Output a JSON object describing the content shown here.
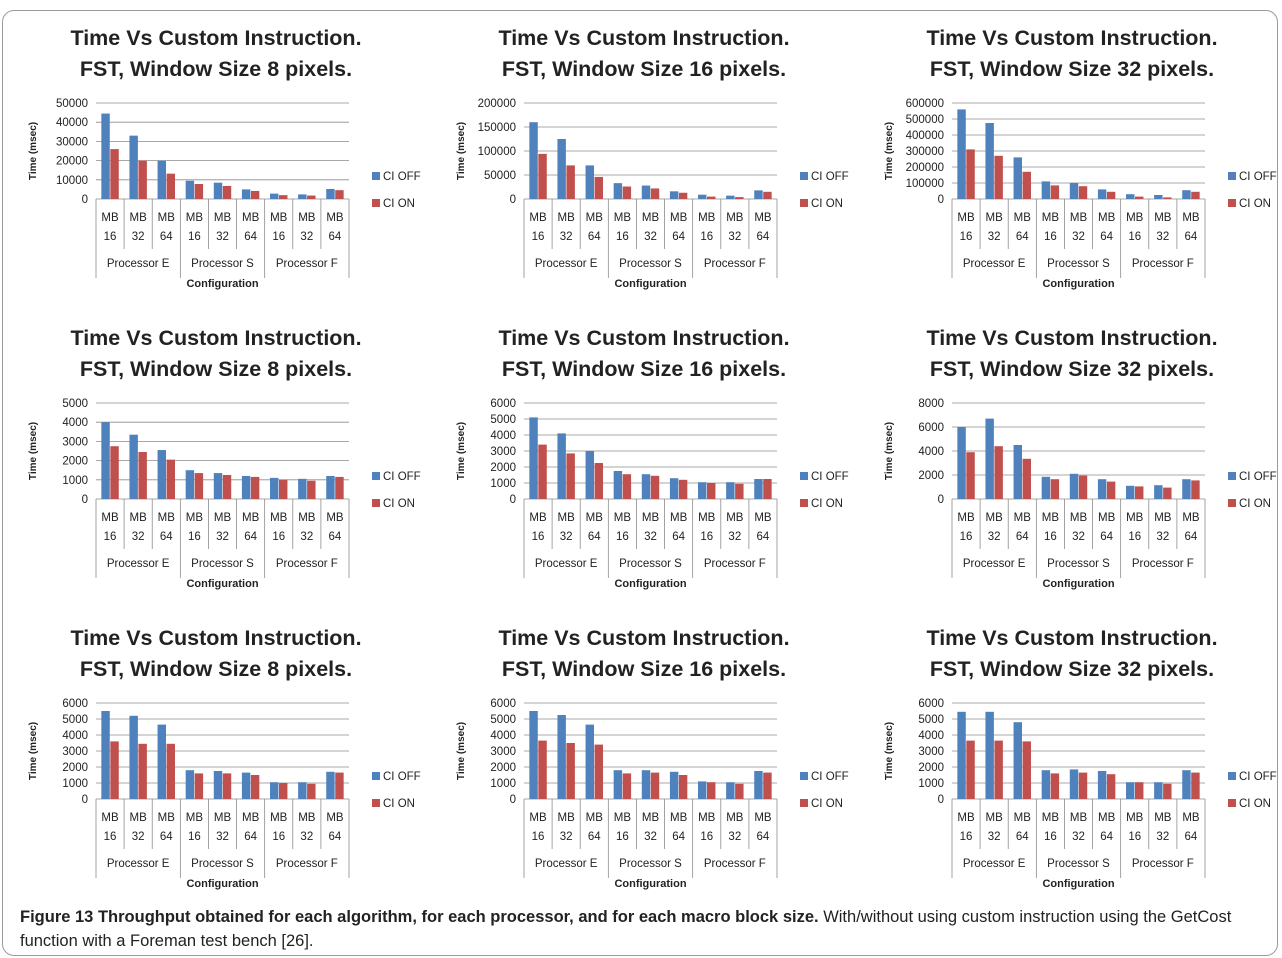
{
  "caption": {
    "label": "Figure 13",
    "title": "Throughput obtained for each algorithm, for each processor, and for each macro block size.",
    "text": "With/without using custom instruction using the GetCost function with a Foreman test bench [26]."
  },
  "colors": {
    "ci_off": "#4f81bd",
    "ci_on": "#c0504d",
    "grid": "#8c8c8c",
    "text": "#222222"
  },
  "chart_data": [
    {
      "type": "bar",
      "title": [
        "Time Vs Custom Instruction.",
        "FST, Window Size 8 pixels."
      ],
      "xlabel": "Configuration",
      "ylabel": "Time (msec)",
      "groups": [
        "Processor E",
        "Processor S",
        "Processor F"
      ],
      "categories": [
        "MB 16",
        "MB 32",
        "MB 64",
        "MB 16",
        "MB 32",
        "MB 64",
        "MB 16",
        "MB 32",
        "MB 64"
      ],
      "yticks": [
        "0",
        "10000",
        "20000",
        "30000",
        "40000",
        "50000"
      ],
      "ylim": [
        0,
        50000
      ],
      "legend_position": "right",
      "series": [
        {
          "name": "CI OFF",
          "values": [
            44500,
            33000,
            20000,
            9500,
            8500,
            5000,
            2800,
            2400,
            5200
          ]
        },
        {
          "name": "CI ON",
          "values": [
            26000,
            20000,
            13200,
            7800,
            6800,
            4200,
            2000,
            1800,
            4600
          ]
        }
      ]
    },
    {
      "type": "bar",
      "title": [
        "Time Vs Custom Instruction.",
        "FST, Window Size 16 pixels."
      ],
      "xlabel": "Configuration",
      "ylabel": "Time (msec)",
      "groups": [
        "Processor E",
        "Processor S",
        "Processor F"
      ],
      "categories": [
        "MB 16",
        "MB 32",
        "MB 64",
        "MB 16",
        "MB 32",
        "MB 64",
        "MB 16",
        "MB 32",
        "MB 64"
      ],
      "yticks": [
        "0",
        "50000",
        "100000",
        "150000",
        "200000"
      ],
      "ylim": [
        0,
        200000
      ],
      "legend_position": "right",
      "series": [
        {
          "name": "CI OFF",
          "values": [
            160000,
            125000,
            70000,
            33000,
            28000,
            16000,
            9000,
            7000,
            18000
          ]
        },
        {
          "name": "CI ON",
          "values": [
            94000,
            70000,
            46000,
            26000,
            22000,
            13000,
            5000,
            4000,
            15000
          ]
        }
      ]
    },
    {
      "type": "bar",
      "title": [
        "Time Vs Custom Instruction.",
        "FST, Window Size 32 pixels."
      ],
      "xlabel": "Configuration",
      "ylabel": "Time (msec)",
      "groups": [
        "Processor E",
        "Processor S",
        "Processor F"
      ],
      "categories": [
        "MB 16",
        "MB 32",
        "MB 64",
        "MB 16",
        "MB 32",
        "MB 64",
        "MB 16",
        "MB 32",
        "MB 64"
      ],
      "yticks": [
        "0",
        "100000",
        "200000",
        "300000",
        "400000",
        "500000",
        "600000"
      ],
      "ylim": [
        0,
        600000
      ],
      "legend_position": "right",
      "series": [
        {
          "name": "CI OFF",
          "values": [
            560000,
            475000,
            260000,
            110000,
            100000,
            60000,
            30000,
            25000,
            55000
          ]
        },
        {
          "name": "CI ON",
          "values": [
            310000,
            270000,
            170000,
            85000,
            80000,
            45000,
            15000,
            10000,
            45000
          ]
        }
      ]
    },
    {
      "type": "bar",
      "title": [
        "Time Vs Custom Instruction.",
        "FST, Window Size 8 pixels."
      ],
      "xlabel": "Configuration",
      "ylabel": "Time (msec)",
      "groups": [
        "Processor E",
        "Processor S",
        "Processor F"
      ],
      "categories": [
        "MB 16",
        "MB 32",
        "MB 64",
        "MB 16",
        "MB 32",
        "MB 64",
        "MB 16",
        "MB 32",
        "MB 64"
      ],
      "yticks": [
        "0",
        "1000",
        "2000",
        "3000",
        "4000",
        "5000"
      ],
      "ylim": [
        0,
        5000
      ],
      "legend_position": "right",
      "series": [
        {
          "name": "CI OFF",
          "values": [
            4000,
            3350,
            2550,
            1500,
            1350,
            1200,
            1100,
            1050,
            1200
          ]
        },
        {
          "name": "CI ON",
          "values": [
            2750,
            2450,
            2050,
            1350,
            1250,
            1150,
            1000,
            950,
            1150
          ]
        }
      ]
    },
    {
      "type": "bar",
      "title": [
        "Time Vs Custom Instruction.",
        "FST, Window Size 16 pixels."
      ],
      "xlabel": "Configuration",
      "ylabel": "Time (msec)",
      "groups": [
        "Processor E",
        "Processor S",
        "Processor F"
      ],
      "categories": [
        "MB 16",
        "MB 32",
        "MB 64",
        "MB 16",
        "MB 32",
        "MB 64",
        "MB 16",
        "MB 32",
        "MB 64"
      ],
      "yticks": [
        "0",
        "1000",
        "2000",
        "3000",
        "4000",
        "5000",
        "6000"
      ],
      "ylim": [
        0,
        6000
      ],
      "legend_position": "right",
      "series": [
        {
          "name": "CI OFF",
          "values": [
            5100,
            4100,
            3000,
            1750,
            1550,
            1300,
            1050,
            1050,
            1250
          ]
        },
        {
          "name": "CI ON",
          "values": [
            3400,
            2850,
            2250,
            1550,
            1450,
            1200,
            1000,
            950,
            1250
          ]
        }
      ]
    },
    {
      "type": "bar",
      "title": [
        "Time Vs Custom Instruction.",
        "FST, Window Size 32 pixels."
      ],
      "xlabel": "Configuration",
      "ylabel": "Time (msec)",
      "groups": [
        "Processor E",
        "Processor S",
        "Processor F"
      ],
      "categories": [
        "MB 16",
        "MB 32",
        "MB 64",
        "MB 16",
        "MB 32",
        "MB 64",
        "MB 16",
        "MB 32",
        "MB 64"
      ],
      "yticks": [
        "0",
        "2000",
        "4000",
        "6000",
        "8000"
      ],
      "ylim": [
        0,
        8000
      ],
      "legend_position": "right",
      "series": [
        {
          "name": "CI OFF",
          "values": [
            6000,
            6700,
            4500,
            1850,
            2100,
            1650,
            1100,
            1150,
            1650
          ]
        },
        {
          "name": "CI ON",
          "values": [
            3900,
            4400,
            3350,
            1650,
            1950,
            1450,
            1050,
            950,
            1550
          ]
        }
      ]
    },
    {
      "type": "bar",
      "title": [
        "Time Vs Custom Instruction.",
        "FST, Window Size 8 pixels."
      ],
      "xlabel": "Configuration",
      "ylabel": "Time (msec)",
      "groups": [
        "Processor E",
        "Processor S",
        "Processor F"
      ],
      "categories": [
        "MB 16",
        "MB 32",
        "MB 64",
        "MB 16",
        "MB 32",
        "MB 64",
        "MB 16",
        "MB 32",
        "MB 64"
      ],
      "yticks": [
        "0",
        "1000",
        "2000",
        "3000",
        "4000",
        "5000",
        "6000"
      ],
      "ylim": [
        0,
        6000
      ],
      "legend_position": "right",
      "series": [
        {
          "name": "CI OFF",
          "values": [
            5500,
            5200,
            4650,
            1800,
            1750,
            1650,
            1050,
            1050,
            1700
          ]
        },
        {
          "name": "CI ON",
          "values": [
            3600,
            3450,
            3450,
            1600,
            1600,
            1500,
            1000,
            950,
            1650
          ]
        }
      ]
    },
    {
      "type": "bar",
      "title": [
        "Time Vs Custom Instruction.",
        "FST, Window Size 16 pixels."
      ],
      "xlabel": "Configuration",
      "ylabel": "Time (msec)",
      "groups": [
        "Processor E",
        "Processor S",
        "Processor F"
      ],
      "categories": [
        "MB 16",
        "MB 32",
        "MB 64",
        "MB 16",
        "MB 32",
        "MB 64",
        "MB 16",
        "MB 32",
        "MB 64"
      ],
      "yticks": [
        "0",
        "1000",
        "2000",
        "3000",
        "4000",
        "5000",
        "6000"
      ],
      "ylim": [
        0,
        6000
      ],
      "legend_position": "right",
      "series": [
        {
          "name": "CI OFF",
          "values": [
            5500,
            5250,
            4650,
            1800,
            1800,
            1700,
            1100,
            1050,
            1750
          ]
        },
        {
          "name": "CI ON",
          "values": [
            3650,
            3500,
            3400,
            1600,
            1650,
            1500,
            1050,
            950,
            1650
          ]
        }
      ]
    },
    {
      "type": "bar",
      "title": [
        "Time Vs Custom Instruction.",
        "FST, Window Size 32 pixels."
      ],
      "xlabel": "Configuration",
      "ylabel": "Time (msec)",
      "groups": [
        "Processor E",
        "Processor S",
        "Processor F"
      ],
      "categories": [
        "MB 16",
        "MB 32",
        "MB 64",
        "MB 16",
        "MB 32",
        "MB 64",
        "MB 16",
        "MB 32",
        "MB 64"
      ],
      "yticks": [
        "0",
        "1000",
        "2000",
        "3000",
        "4000",
        "5000",
        "6000"
      ],
      "ylim": [
        0,
        6000
      ],
      "legend_position": "right",
      "series": [
        {
          "name": "CI OFF",
          "values": [
            5450,
            5450,
            4800,
            1800,
            1850,
            1750,
            1050,
            1050,
            1800
          ]
        },
        {
          "name": "CI ON",
          "values": [
            3650,
            3650,
            3600,
            1600,
            1650,
            1550,
            1050,
            950,
            1650
          ]
        }
      ]
    }
  ]
}
